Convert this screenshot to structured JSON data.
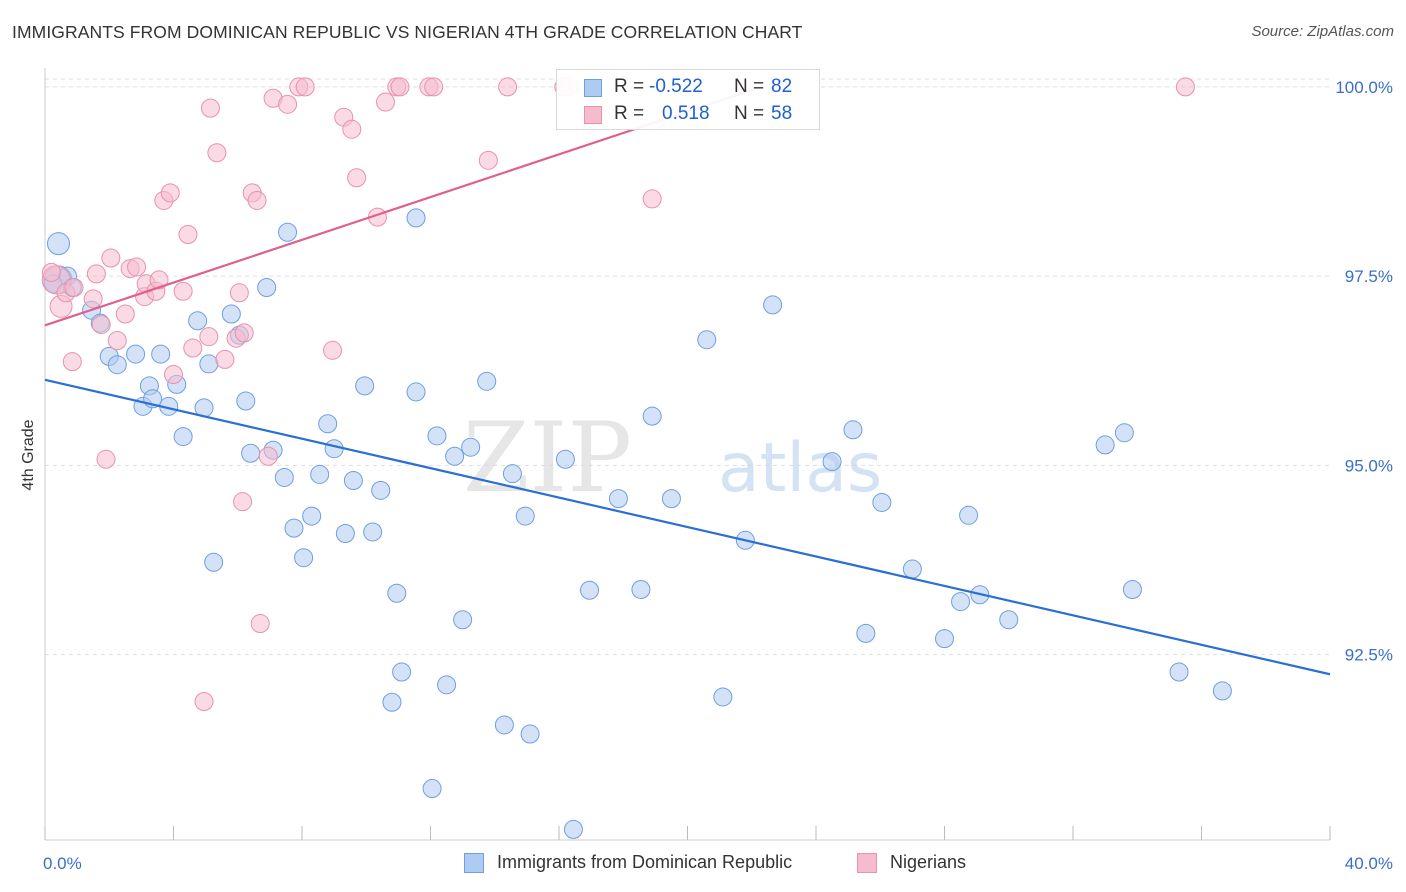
{
  "header": {
    "title": "IMMIGRANTS FROM DOMINICAN REPUBLIC VS NIGERIAN 4TH GRADE CORRELATION CHART",
    "source": "Source: ZipAtlas.com"
  },
  "watermark": {
    "zip": "ZIP",
    "atlas": "atlas"
  },
  "stats": {
    "r_label": "R =",
    "n_label": "N =",
    "rows": [
      {
        "r": "-0.522",
        "n": "82"
      },
      {
        "r": "0.518",
        "n": "58"
      }
    ]
  },
  "colors": {
    "blue_fill": "#aecbf1",
    "blue_stroke": "#6f9fe0",
    "blue_line": "#2a6fd4",
    "pink_fill": "#f6bccd",
    "pink_stroke": "#e892ac",
    "pink_line": "#e0608a",
    "tick_text": "#3a6fc9",
    "grid": "#dddddd"
  },
  "chart_data": {
    "type": "scatter",
    "title": "IMMIGRANTS FROM DOMINICAN REPUBLIC VS NIGERIAN 4TH GRADE CORRELATION CHART",
    "xlabel": "",
    "ylabel": "4th Grade",
    "xlim": [
      0,
      40
    ],
    "ylim": [
      90.05,
      100.25
    ],
    "x_tick_labels": [
      "0.0%",
      "40.0%"
    ],
    "y_ticks": [
      92.5,
      95.0,
      97.5,
      100.0
    ],
    "y_tick_labels": [
      "92.5%",
      "95.0%",
      "97.5%",
      "100.0%"
    ],
    "grid": true,
    "legend": [
      "Immigrants from Dominican Republic",
      "Nigerians"
    ],
    "series": [
      {
        "name": "Immigrants from Dominican Republic",
        "r": -0.522,
        "n": 82,
        "trend": {
          "x": [
            0,
            40
          ],
          "y": [
            96.13,
            92.24
          ]
        },
        "points": [
          {
            "x": 0.42,
            "y": 97.93,
            "s": 11
          },
          {
            "x": 0.4,
            "y": 97.45,
            "s": 14
          },
          {
            "x": 0.7,
            "y": 97.5,
            "s": 9
          },
          {
            "x": 0.85,
            "y": 97.35,
            "s": 9
          },
          {
            "x": 1.45,
            "y": 97.05,
            "s": 9
          },
          {
            "x": 1.72,
            "y": 96.88,
            "s": 9
          },
          {
            "x": 2.0,
            "y": 96.44,
            "s": 9
          },
          {
            "x": 2.25,
            "y": 96.33,
            "s": 9
          },
          {
            "x": 2.82,
            "y": 96.47,
            "s": 9
          },
          {
            "x": 3.6,
            "y": 96.47,
            "s": 9
          },
          {
            "x": 3.05,
            "y": 95.78,
            "s": 9
          },
          {
            "x": 3.25,
            "y": 96.05,
            "s": 9
          },
          {
            "x": 3.35,
            "y": 95.88,
            "s": 9
          },
          {
            "x": 3.85,
            "y": 95.78,
            "s": 9
          },
          {
            "x": 4.1,
            "y": 96.07,
            "s": 9
          },
          {
            "x": 4.3,
            "y": 95.38,
            "s": 9
          },
          {
            "x": 4.75,
            "y": 96.91,
            "s": 9
          },
          {
            "x": 4.95,
            "y": 95.76,
            "s": 9
          },
          {
            "x": 5.1,
            "y": 96.34,
            "s": 9
          },
          {
            "x": 5.25,
            "y": 93.72,
            "s": 9
          },
          {
            "x": 5.8,
            "y": 97.0,
            "s": 9
          },
          {
            "x": 6.05,
            "y": 96.72,
            "s": 9
          },
          {
            "x": 6.25,
            "y": 95.85,
            "s": 9
          },
          {
            "x": 6.4,
            "y": 95.16,
            "s": 9
          },
          {
            "x": 6.9,
            "y": 97.35,
            "s": 9
          },
          {
            "x": 7.1,
            "y": 95.2,
            "s": 9
          },
          {
            "x": 7.45,
            "y": 94.84,
            "s": 9
          },
          {
            "x": 7.55,
            "y": 98.08,
            "s": 9
          },
          {
            "x": 7.75,
            "y": 94.17,
            "s": 9
          },
          {
            "x": 8.05,
            "y": 93.78,
            "s": 9
          },
          {
            "x": 8.3,
            "y": 94.33,
            "s": 9
          },
          {
            "x": 8.55,
            "y": 94.88,
            "s": 9
          },
          {
            "x": 8.8,
            "y": 95.55,
            "s": 9
          },
          {
            "x": 9.0,
            "y": 95.22,
            "s": 9
          },
          {
            "x": 9.35,
            "y": 94.1,
            "s": 9
          },
          {
            "x": 9.6,
            "y": 94.8,
            "s": 9
          },
          {
            "x": 9.95,
            "y": 96.05,
            "s": 9
          },
          {
            "x": 10.2,
            "y": 94.12,
            "s": 9
          },
          {
            "x": 10.45,
            "y": 94.67,
            "s": 9
          },
          {
            "x": 10.95,
            "y": 93.31,
            "s": 9
          },
          {
            "x": 11.1,
            "y": 92.27,
            "s": 9
          },
          {
            "x": 10.8,
            "y": 91.87,
            "s": 9
          },
          {
            "x": 11.55,
            "y": 95.97,
            "s": 9
          },
          {
            "x": 11.55,
            "y": 98.27,
            "s": 9
          },
          {
            "x": 12.05,
            "y": 90.73,
            "s": 9
          },
          {
            "x": 12.2,
            "y": 95.39,
            "s": 9
          },
          {
            "x": 12.5,
            "y": 92.1,
            "s": 9
          },
          {
            "x": 12.75,
            "y": 95.12,
            "s": 9
          },
          {
            "x": 13.0,
            "y": 92.96,
            "s": 9
          },
          {
            "x": 13.25,
            "y": 95.24,
            "s": 9
          },
          {
            "x": 13.75,
            "y": 96.11,
            "s": 9
          },
          {
            "x": 14.3,
            "y": 91.57,
            "s": 9
          },
          {
            "x": 14.55,
            "y": 94.89,
            "s": 9
          },
          {
            "x": 14.95,
            "y": 94.33,
            "s": 9
          },
          {
            "x": 15.1,
            "y": 91.45,
            "s": 9
          },
          {
            "x": 16.2,
            "y": 95.08,
            "s": 9
          },
          {
            "x": 16.45,
            "y": 90.19,
            "s": 9
          },
          {
            "x": 16.95,
            "y": 93.35,
            "s": 9
          },
          {
            "x": 17.85,
            "y": 94.56,
            "s": 9
          },
          {
            "x": 18.55,
            "y": 93.36,
            "s": 9
          },
          {
            "x": 18.9,
            "y": 95.65,
            "s": 9
          },
          {
            "x": 19.5,
            "y": 94.56,
            "s": 9
          },
          {
            "x": 20.6,
            "y": 96.66,
            "s": 9
          },
          {
            "x": 21.1,
            "y": 91.94,
            "s": 9
          },
          {
            "x": 21.8,
            "y": 94.01,
            "s": 9
          },
          {
            "x": 22.65,
            "y": 97.12,
            "s": 9
          },
          {
            "x": 24.5,
            "y": 95.05,
            "s": 9
          },
          {
            "x": 25.15,
            "y": 95.47,
            "s": 9
          },
          {
            "x": 25.55,
            "y": 92.78,
            "s": 9
          },
          {
            "x": 26.05,
            "y": 94.51,
            "s": 9
          },
          {
            "x": 27.0,
            "y": 93.63,
            "s": 9
          },
          {
            "x": 28.0,
            "y": 92.71,
            "s": 9
          },
          {
            "x": 28.5,
            "y": 93.2,
            "s": 9
          },
          {
            "x": 28.75,
            "y": 94.34,
            "s": 9
          },
          {
            "x": 29.1,
            "y": 93.29,
            "s": 9
          },
          {
            "x": 30.0,
            "y": 92.96,
            "s": 9
          },
          {
            "x": 33.0,
            "y": 95.27,
            "s": 9
          },
          {
            "x": 33.6,
            "y": 95.43,
            "s": 9
          },
          {
            "x": 33.85,
            "y": 93.36,
            "s": 9
          },
          {
            "x": 35.3,
            "y": 92.27,
            "s": 9
          },
          {
            "x": 36.65,
            "y": 92.02,
            "s": 9
          },
          {
            "x": 0.25,
            "y": 97.4,
            "s": 9
          }
        ]
      },
      {
        "name": "Nigerians",
        "r": 0.518,
        "n": 58,
        "trend": {
          "x": [
            0,
            22.1
          ],
          "y": [
            96.85,
            99.97
          ]
        },
        "points": [
          {
            "x": 0.35,
            "y": 97.45,
            "s": 14
          },
          {
            "x": 0.5,
            "y": 97.1,
            "s": 11
          },
          {
            "x": 0.65,
            "y": 97.28,
            "s": 9
          },
          {
            "x": 0.85,
            "y": 96.37,
            "s": 9
          },
          {
            "x": 0.9,
            "y": 97.35,
            "s": 9
          },
          {
            "x": 1.5,
            "y": 97.2,
            "s": 9
          },
          {
            "x": 1.6,
            "y": 97.53,
            "s": 9
          },
          {
            "x": 1.75,
            "y": 96.86,
            "s": 9
          },
          {
            "x": 1.9,
            "y": 95.08,
            "s": 9
          },
          {
            "x": 2.05,
            "y": 97.74,
            "s": 9
          },
          {
            "x": 2.25,
            "y": 96.65,
            "s": 9
          },
          {
            "x": 2.5,
            "y": 97.0,
            "s": 9
          },
          {
            "x": 2.65,
            "y": 97.6,
            "s": 9
          },
          {
            "x": 2.85,
            "y": 97.62,
            "s": 9
          },
          {
            "x": 3.1,
            "y": 97.23,
            "s": 9
          },
          {
            "x": 3.15,
            "y": 97.4,
            "s": 9
          },
          {
            "x": 3.45,
            "y": 97.3,
            "s": 9
          },
          {
            "x": 3.55,
            "y": 97.45,
            "s": 9
          },
          {
            "x": 3.7,
            "y": 98.5,
            "s": 9
          },
          {
            "x": 3.9,
            "y": 98.6,
            "s": 9
          },
          {
            "x": 4.0,
            "y": 96.2,
            "s": 9
          },
          {
            "x": 4.3,
            "y": 97.3,
            "s": 9
          },
          {
            "x": 4.45,
            "y": 98.05,
            "s": 9
          },
          {
            "x": 4.6,
            "y": 96.55,
            "s": 9
          },
          {
            "x": 4.95,
            "y": 91.88,
            "s": 9
          },
          {
            "x": 5.1,
            "y": 96.7,
            "s": 9
          },
          {
            "x": 5.15,
            "y": 99.72,
            "s": 9
          },
          {
            "x": 5.35,
            "y": 99.13,
            "s": 9
          },
          {
            "x": 5.6,
            "y": 96.4,
            "s": 9
          },
          {
            "x": 5.95,
            "y": 96.68,
            "s": 9
          },
          {
            "x": 6.05,
            "y": 97.28,
            "s": 9
          },
          {
            "x": 6.15,
            "y": 94.52,
            "s": 9
          },
          {
            "x": 6.2,
            "y": 96.75,
            "s": 9
          },
          {
            "x": 6.45,
            "y": 98.6,
            "s": 9
          },
          {
            "x": 6.6,
            "y": 98.5,
            "s": 9
          },
          {
            "x": 6.7,
            "y": 92.91,
            "s": 9
          },
          {
            "x": 6.95,
            "y": 95.12,
            "s": 9
          },
          {
            "x": 7.1,
            "y": 99.85,
            "s": 9
          },
          {
            "x": 7.55,
            "y": 99.77,
            "s": 9
          },
          {
            "x": 7.9,
            "y": 100.0,
            "s": 9
          },
          {
            "x": 8.1,
            "y": 100.0,
            "s": 9
          },
          {
            "x": 8.95,
            "y": 96.52,
            "s": 9
          },
          {
            "x": 9.3,
            "y": 99.6,
            "s": 9
          },
          {
            "x": 9.55,
            "y": 99.44,
            "s": 9
          },
          {
            "x": 9.7,
            "y": 98.8,
            "s": 9
          },
          {
            "x": 10.35,
            "y": 98.28,
            "s": 9
          },
          {
            "x": 10.6,
            "y": 99.8,
            "s": 9
          },
          {
            "x": 10.95,
            "y": 100.0,
            "s": 9
          },
          {
            "x": 11.05,
            "y": 100.0,
            "s": 9
          },
          {
            "x": 11.95,
            "y": 100.0,
            "s": 9
          },
          {
            "x": 12.1,
            "y": 100.0,
            "s": 9
          },
          {
            "x": 13.8,
            "y": 99.03,
            "s": 9
          },
          {
            "x": 14.4,
            "y": 100.0,
            "s": 9
          },
          {
            "x": 16.15,
            "y": 100.0,
            "s": 9
          },
          {
            "x": 16.3,
            "y": 100.0,
            "s": 9
          },
          {
            "x": 18.9,
            "y": 98.52,
            "s": 9
          },
          {
            "x": 35.5,
            "y": 100.0,
            "s": 9
          },
          {
            "x": 0.2,
            "y": 97.55,
            "s": 9
          }
        ]
      }
    ]
  }
}
